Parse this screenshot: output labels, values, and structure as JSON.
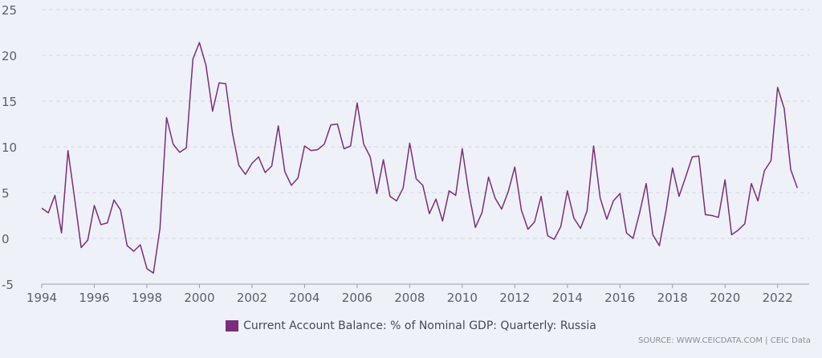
{
  "chart_data": {
    "type": "line",
    "title": "",
    "xlabel": "",
    "ylabel": "",
    "ylim": [
      -5,
      25
    ],
    "xlim": [
      1994,
      2023.2
    ],
    "yticks": [
      -5,
      0,
      5,
      10,
      15,
      20,
      25
    ],
    "xticks": [
      1994,
      1996,
      1998,
      2000,
      2002,
      2004,
      2006,
      2008,
      2010,
      2012,
      2014,
      2016,
      2018,
      2020,
      2022
    ],
    "grid": true,
    "legend_position": "bottom-center",
    "series": [
      {
        "name": "Current Account Balance: % of Nominal GDP: Quarterly: Russia",
        "color": "#7b2d7f",
        "points": [
          [
            "1994-Q1",
            3.3
          ],
          [
            "1994-Q2",
            2.8
          ],
          [
            "1994-Q3",
            4.7
          ],
          [
            "1994-Q4",
            0.6
          ],
          [
            "1995-Q1",
            9.6
          ],
          [
            "1995-Q2",
            4.4
          ],
          [
            "1995-Q3",
            -1.0
          ],
          [
            "1995-Q4",
            -0.2
          ],
          [
            "1996-Q1",
            3.6
          ],
          [
            "1996-Q2",
            1.5
          ],
          [
            "1996-Q3",
            1.7
          ],
          [
            "1996-Q4",
            4.2
          ],
          [
            "1997-Q1",
            3.1
          ],
          [
            "1997-Q2",
            -0.8
          ],
          [
            "1997-Q3",
            -1.4
          ],
          [
            "1997-Q4",
            -0.7
          ],
          [
            "1998-Q1",
            -3.3
          ],
          [
            "1998-Q2",
            -3.8
          ],
          [
            "1998-Q3",
            1.1
          ],
          [
            "1998-Q4",
            13.2
          ],
          [
            "1999-Q1",
            10.3
          ],
          [
            "1999-Q2",
            9.4
          ],
          [
            "1999-Q3",
            9.9
          ],
          [
            "1999-Q4",
            19.6
          ],
          [
            "2000-Q1",
            21.4
          ],
          [
            "2000-Q2",
            18.9
          ],
          [
            "2000-Q3",
            13.9
          ],
          [
            "2000-Q4",
            17.0
          ],
          [
            "2001-Q1",
            16.9
          ],
          [
            "2001-Q2",
            11.6
          ],
          [
            "2001-Q3",
            8.0
          ],
          [
            "2001-Q4",
            7.0
          ],
          [
            "2002-Q1",
            8.2
          ],
          [
            "2002-Q2",
            8.9
          ],
          [
            "2002-Q3",
            7.2
          ],
          [
            "2002-Q4",
            7.9
          ],
          [
            "2003-Q1",
            12.3
          ],
          [
            "2003-Q2",
            7.3
          ],
          [
            "2003-Q3",
            5.8
          ],
          [
            "2003-Q4",
            6.6
          ],
          [
            "2004-Q1",
            10.1
          ],
          [
            "2004-Q2",
            9.6
          ],
          [
            "2004-Q3",
            9.7
          ],
          [
            "2004-Q4",
            10.3
          ],
          [
            "2005-Q1",
            12.4
          ],
          [
            "2005-Q2",
            12.5
          ],
          [
            "2005-Q3",
            9.8
          ],
          [
            "2005-Q4",
            10.1
          ],
          [
            "2006-Q1",
            14.8
          ],
          [
            "2006-Q2",
            10.3
          ],
          [
            "2006-Q3",
            8.9
          ],
          [
            "2006-Q4",
            4.9
          ],
          [
            "2007-Q1",
            8.6
          ],
          [
            "2007-Q2",
            4.6
          ],
          [
            "2007-Q3",
            4.1
          ],
          [
            "2007-Q4",
            5.5
          ],
          [
            "2008-Q1",
            10.4
          ],
          [
            "2008-Q2",
            6.5
          ],
          [
            "2008-Q3",
            5.8
          ],
          [
            "2008-Q4",
            2.7
          ],
          [
            "2009-Q1",
            4.3
          ],
          [
            "2009-Q2",
            1.9
          ],
          [
            "2009-Q3",
            5.2
          ],
          [
            "2009-Q4",
            4.7
          ],
          [
            "2010-Q1",
            9.8
          ],
          [
            "2010-Q2",
            5.0
          ],
          [
            "2010-Q3",
            1.2
          ],
          [
            "2010-Q4",
            2.8
          ],
          [
            "2011-Q1",
            6.7
          ],
          [
            "2011-Q2",
            4.4
          ],
          [
            "2011-Q3",
            3.2
          ],
          [
            "2011-Q4",
            5.1
          ],
          [
            "2012-Q1",
            7.8
          ],
          [
            "2012-Q2",
            3.1
          ],
          [
            "2012-Q3",
            1.0
          ],
          [
            "2012-Q4",
            1.8
          ],
          [
            "2013-Q1",
            4.6
          ],
          [
            "2013-Q2",
            0.3
          ],
          [
            "2013-Q3",
            -0.1
          ],
          [
            "2013-Q4",
            1.3
          ],
          [
            "2014-Q1",
            5.2
          ],
          [
            "2014-Q2",
            2.2
          ],
          [
            "2014-Q3",
            1.1
          ],
          [
            "2014-Q4",
            3.0
          ],
          [
            "2015-Q1",
            10.1
          ],
          [
            "2015-Q2",
            4.4
          ],
          [
            "2015-Q3",
            2.1
          ],
          [
            "2015-Q4",
            4.1
          ],
          [
            "2016-Q1",
            4.9
          ],
          [
            "2016-Q2",
            0.6
          ],
          [
            "2016-Q3",
            0.0
          ],
          [
            "2016-Q4",
            2.8
          ],
          [
            "2017-Q1",
            6.0
          ],
          [
            "2017-Q2",
            0.4
          ],
          [
            "2017-Q3",
            -0.8
          ],
          [
            "2017-Q4",
            3.0
          ],
          [
            "2018-Q1",
            7.7
          ],
          [
            "2018-Q2",
            4.6
          ],
          [
            "2018-Q3",
            6.7
          ],
          [
            "2018-Q4",
            8.9
          ],
          [
            "2019-Q1",
            9.0
          ],
          [
            "2019-Q2",
            2.6
          ],
          [
            "2019-Q3",
            2.5
          ],
          [
            "2019-Q4",
            2.3
          ],
          [
            "2020-Q1",
            6.4
          ],
          [
            "2020-Q2",
            0.4
          ],
          [
            "2020-Q3",
            0.9
          ],
          [
            "2020-Q4",
            1.6
          ],
          [
            "2021-Q1",
            6.0
          ],
          [
            "2021-Q2",
            4.1
          ],
          [
            "2021-Q3",
            7.4
          ],
          [
            "2021-Q4",
            8.5
          ],
          [
            "2022-Q1",
            16.5
          ],
          [
            "2022-Q2",
            14.2
          ],
          [
            "2022-Q3",
            7.5
          ],
          [
            "2022-Q4",
            5.5
          ]
        ]
      }
    ]
  },
  "legend": {
    "label": "Current Account Balance: % of Nominal GDP: Quarterly: Russia",
    "color": "#7b2d7f"
  },
  "source": "SOURCE: WWW.CEICDATA.COM | CEIC Data"
}
